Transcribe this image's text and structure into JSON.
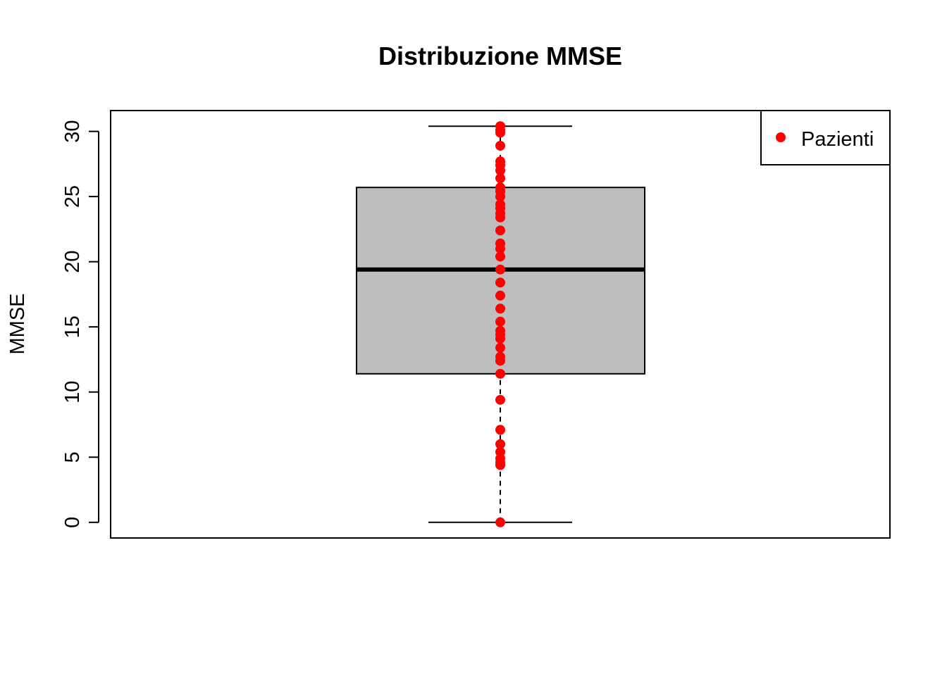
{
  "chart_data": {
    "type": "boxplot",
    "title": "Distribuzione MMSE",
    "xlabel": "",
    "ylabel": "MMSE",
    "yticks": [
      0,
      5,
      10,
      15,
      20,
      25,
      30
    ],
    "ylim": [
      -1.2,
      31.6
    ],
    "box": {
      "whisker_low": 0,
      "q1": 11.4,
      "median": 19.4,
      "q3": 25.7,
      "whisker_high": 30.4,
      "fill": "#bebebe",
      "outline": "#000000"
    },
    "points": {
      "name": "Pazienti",
      "color": "#ff0000",
      "values": [
        0,
        4.4,
        4.6,
        4.9,
        5.4,
        6.0,
        7.1,
        9.4,
        11.4,
        12.4,
        12.7,
        13.4,
        14.1,
        14.4,
        14.7,
        15.4,
        16.4,
        17.4,
        18.4,
        19.4,
        20.4,
        21.0,
        21.4,
        22.4,
        23.4,
        23.7,
        24.1,
        24.4,
        25.0,
        25.4,
        25.7,
        26.4,
        27.0,
        27.4,
        27.7,
        28.9,
        29.9,
        30.1,
        30.4
      ]
    },
    "legend": {
      "entries": [
        "Pazienti"
      ],
      "position": "top-right"
    },
    "grid": false
  }
}
